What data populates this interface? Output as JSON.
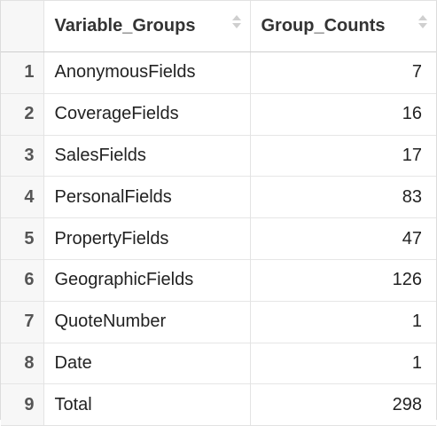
{
  "table": {
    "columns": {
      "groups": "Variable_Groups",
      "counts": "Group_Counts"
    },
    "rows": [
      {
        "index": "1",
        "group": "AnonymousFields",
        "count": "7"
      },
      {
        "index": "2",
        "group": "CoverageFields",
        "count": "16"
      },
      {
        "index": "3",
        "group": "SalesFields",
        "count": "17"
      },
      {
        "index": "4",
        "group": "PersonalFields",
        "count": "83"
      },
      {
        "index": "5",
        "group": "PropertyFields",
        "count": "47"
      },
      {
        "index": "6",
        "group": "GeographicFields",
        "count": "126"
      },
      {
        "index": "7",
        "group": "QuoteNumber",
        "count": "1"
      },
      {
        "index": "8",
        "group": "Date",
        "count": "1"
      },
      {
        "index": "9",
        "group": "Total",
        "count": "298"
      }
    ]
  }
}
